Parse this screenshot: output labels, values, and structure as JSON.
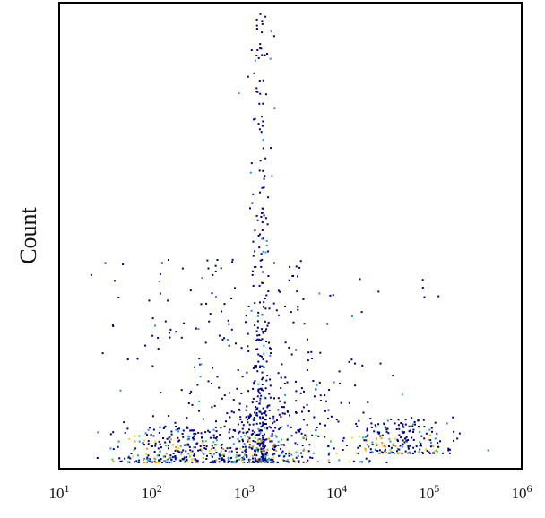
{
  "chart_data": {
    "type": "scatter",
    "title": "",
    "xlabel": "",
    "ylabel": "Count",
    "xscale": "log",
    "xlim": [
      10,
      1000000
    ],
    "x_ticks": [
      {
        "value": 10,
        "base": "10",
        "exp": "1"
      },
      {
        "value": 100,
        "base": "10",
        "exp": "2"
      },
      {
        "value": 1000,
        "base": "10",
        "exp": "3"
      },
      {
        "value": 10000,
        "base": "10",
        "exp": "4"
      },
      {
        "value": 100000,
        "base": "10",
        "exp": "5"
      },
      {
        "value": 1000000,
        "base": "10",
        "exp": "6"
      }
    ],
    "grid": false,
    "legend": "none",
    "density_colors": [
      "#00008b",
      "#1e90ff",
      "#32cd32",
      "#ffd700",
      "#ff8c00",
      "#dc143c"
    ],
    "populations": [
      {
        "center_x": 1500,
        "spread_log": 0.06,
        "y_range": [
          0.005,
          1.0
        ],
        "points": 260
      },
      {
        "center_x": 1500,
        "spread_log": 0.25,
        "y_range": [
          0.0,
          0.12
        ],
        "points": 230
      },
      {
        "center_x": 200,
        "spread_log": 0.35,
        "y_range": [
          0.0,
          0.08
        ],
        "points": 260
      },
      {
        "center_x": 50000,
        "spread_log": 0.3,
        "y_range": [
          0.02,
          0.1
        ],
        "points": 220
      },
      {
        "center_x": 1200,
        "spread_log": 0.7,
        "y_range": [
          0.0,
          0.45
        ],
        "points": 420
      }
    ]
  }
}
